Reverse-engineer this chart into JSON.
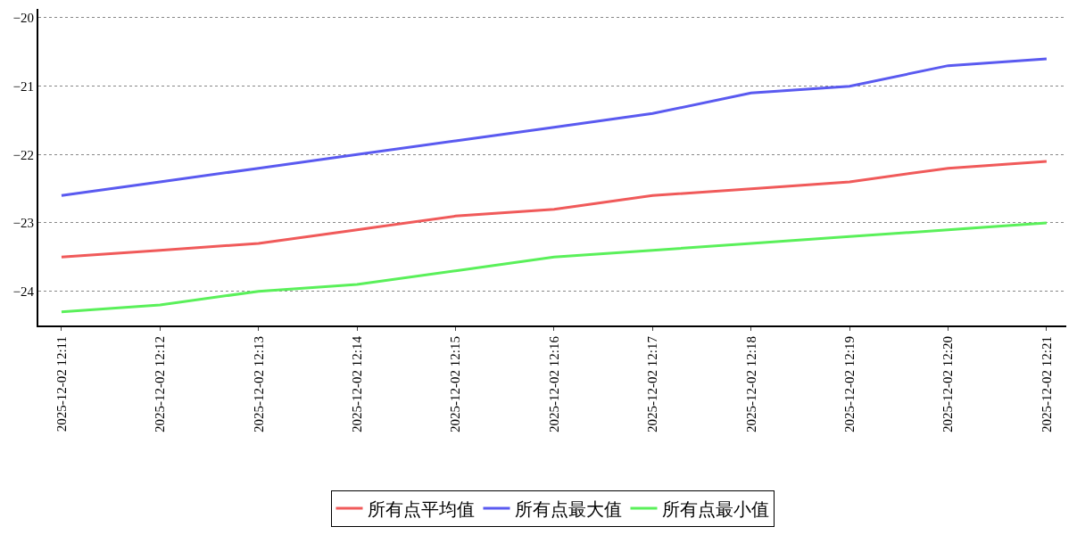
{
  "chart_data": {
    "type": "line",
    "categories": [
      "2025-12-02 12:11",
      "2025-12-02 12:12",
      "2025-12-02 12:13",
      "2025-12-02 12:14",
      "2025-12-02 12:15",
      "2025-12-02 12:16",
      "2025-12-02 12:17",
      "2025-12-02 12:18",
      "2025-12-02 12:19",
      "2025-12-02 12:20",
      "2025-12-02 12:21"
    ],
    "series": [
      {
        "name": "所有点平均值",
        "color": "#f05a5a",
        "values": [
          -23.5,
          -23.4,
          -23.3,
          -23.1,
          -22.9,
          -22.8,
          -22.6,
          -22.5,
          -22.4,
          -22.2,
          -22.1
        ]
      },
      {
        "name": "所有点最大值",
        "color": "#5a5af0",
        "values": [
          -22.6,
          -22.4,
          -22.2,
          -22.0,
          -21.8,
          -21.6,
          -21.4,
          -21.1,
          -21.0,
          -20.7,
          -20.6
        ]
      },
      {
        "name": "所有点最小值",
        "color": "#5af05a",
        "values": [
          -24.3,
          -24.2,
          -24.0,
          -23.9,
          -23.7,
          -23.5,
          -23.4,
          -23.3,
          -23.2,
          -23.1,
          -23.0
        ]
      }
    ],
    "ylim": [
      -24.5,
      -19.87
    ],
    "yticks": [
      {
        "value": -20,
        "label": "−20"
      },
      {
        "value": -21,
        "label": "−21"
      },
      {
        "value": -22,
        "label": "−22"
      },
      {
        "value": -23,
        "label": "−23"
      },
      {
        "value": -24,
        "label": "−24"
      }
    ],
    "grid": "y",
    "legend": "bottom",
    "marker": "none",
    "line_style": "solid"
  }
}
